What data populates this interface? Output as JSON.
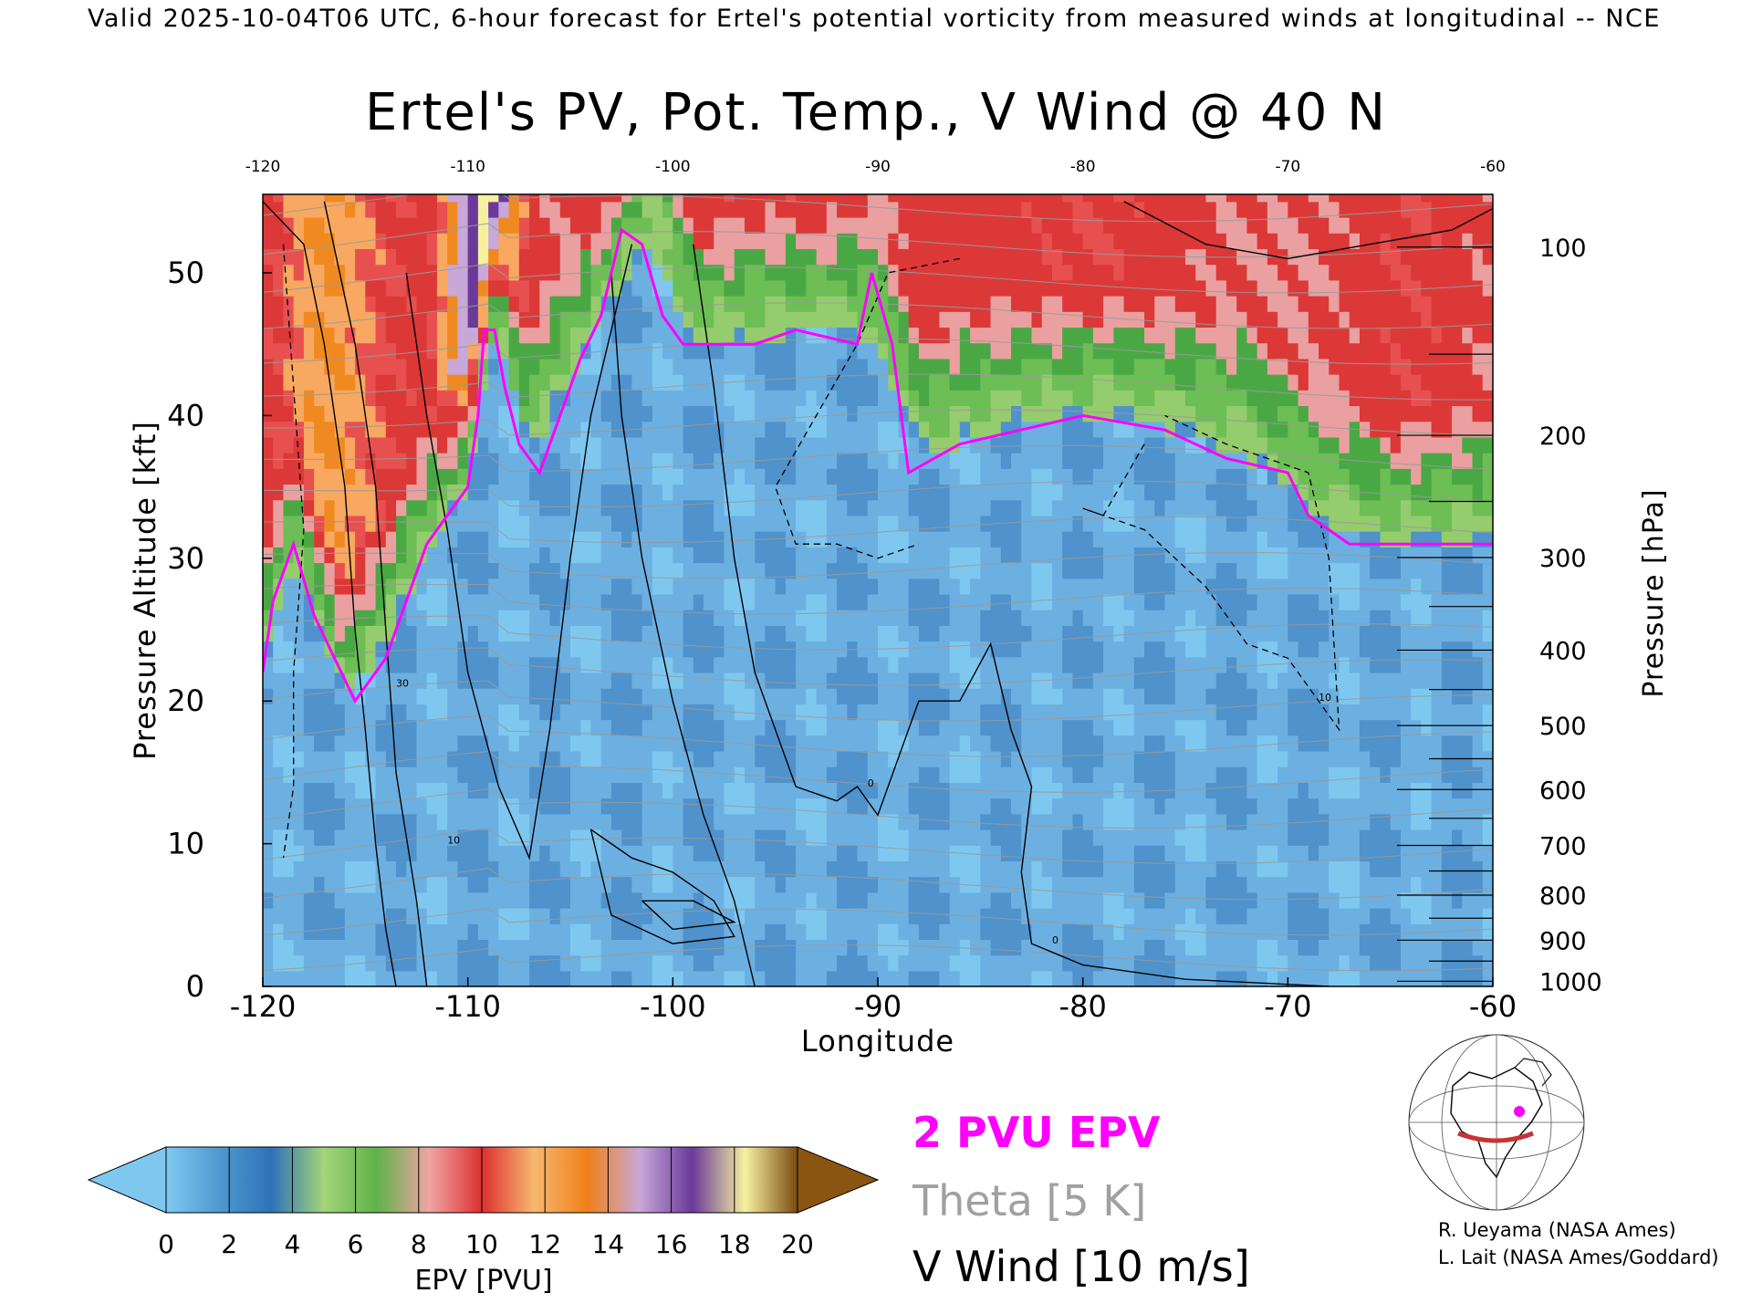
{
  "header": {
    "caption": "Valid 2025-10-04T06 UTC, 6-hour forecast for Ertel's potential vorticity from measured winds at longitudinal -- NCE"
  },
  "chart_data": {
    "type": "heatmap",
    "title": "Ertel's PV, Pot. Temp., V Wind @ 40 N",
    "xlabel": "Longitude",
    "ylabel": "Pressure Altitude [kft]",
    "ylabel_right": "Pressure [hPa]",
    "xlim": [
      -120,
      -60
    ],
    "ylim": [
      0,
      55.5
    ],
    "x_ticks": [
      "-120",
      "-110",
      "-100",
      "-90",
      "-80",
      "-70",
      "-60"
    ],
    "x_tick_values": [
      -120,
      -110,
      -100,
      -90,
      -80,
      -70,
      -60
    ],
    "y_ticks": [
      "0",
      "10",
      "20",
      "30",
      "40",
      "50"
    ],
    "y_tick_values": [
      0,
      10,
      20,
      30,
      40,
      50
    ],
    "pressure_ticks": [
      "100",
      "200",
      "300",
      "400",
      "500",
      "600",
      "700",
      "800",
      "900",
      "1000"
    ],
    "pressure_tick_values": [
      100,
      200,
      300,
      400,
      500,
      600,
      700,
      800,
      900,
      1000
    ],
    "pv_columns": [
      {
        "x": -120,
        "trop": 22,
        "peak": 9
      },
      {
        "x": -118.5,
        "trop": 30,
        "peak": 11
      },
      {
        "x": -117,
        "trop": 24,
        "peak": 13
      },
      {
        "x": -116,
        "trop": 20,
        "peak": 12
      },
      {
        "x": -114,
        "trop": 24,
        "peak": 10
      },
      {
        "x": -112,
        "trop": 30,
        "peak": 9
      },
      {
        "x": -110,
        "trop": 35,
        "peak": 16
      },
      {
        "x": -109,
        "trop": 44,
        "peak": 20
      },
      {
        "x": -108.5,
        "trop": 46,
        "peak": 17
      },
      {
        "x": -107,
        "trop": 37,
        "peak": 9
      },
      {
        "x": -105,
        "trop": 42,
        "peak": 8
      },
      {
        "x": -103,
        "trop": 48,
        "peak": 11
      },
      {
        "x": -101,
        "trop": 52,
        "peak": 6
      },
      {
        "x": -99,
        "trop": 45,
        "peak": 10
      },
      {
        "x": -96,
        "trop": 45,
        "peak": 9
      },
      {
        "x": -93,
        "trop": 46,
        "peak": 10
      },
      {
        "x": -90,
        "trop": 45,
        "peak": 8
      },
      {
        "x": -88,
        "trop": 37,
        "peak": 9
      },
      {
        "x": -84,
        "trop": 39,
        "peak": 9
      },
      {
        "x": -80,
        "trop": 40,
        "peak": 10
      },
      {
        "x": -76,
        "trop": 39,
        "peak": 9
      },
      {
        "x": -72,
        "trop": 37,
        "peak": 8
      },
      {
        "x": -69,
        "trop": 33,
        "peak": 8
      },
      {
        "x": -66,
        "trop": 31,
        "peak": 9
      },
      {
        "x": -64,
        "trop": 31,
        "peak": 10
      },
      {
        "x": -60,
        "trop": 31,
        "peak": 8
      }
    ],
    "pv_2pvu_line": {
      "name": "2 PVU EPV",
      "points": [
        [
          -120,
          22
        ],
        [
          -119.5,
          27
        ],
        [
          -118.5,
          31
        ],
        [
          -117.5,
          26
        ],
        [
          -116.5,
          23
        ],
        [
          -115.5,
          20
        ],
        [
          -114,
          23
        ],
        [
          -112,
          31
        ],
        [
          -110,
          35
        ],
        [
          -109.5,
          40
        ],
        [
          -109.2,
          46
        ],
        [
          -108.7,
          46
        ],
        [
          -108.2,
          42
        ],
        [
          -107.5,
          38
        ],
        [
          -106.5,
          36
        ],
        [
          -105.5,
          40
        ],
        [
          -104.5,
          44
        ],
        [
          -103.5,
          47
        ],
        [
          -102.5,
          53
        ],
        [
          -101.5,
          52
        ],
        [
          -100.5,
          47
        ],
        [
          -99.5,
          45
        ],
        [
          -96,
          45
        ],
        [
          -94,
          46
        ],
        [
          -91,
          45
        ],
        [
          -90.3,
          50
        ],
        [
          -89.3,
          45
        ],
        [
          -88.5,
          36
        ],
        [
          -86,
          38
        ],
        [
          -83,
          39
        ],
        [
          -80,
          40
        ],
        [
          -76,
          39
        ],
        [
          -73,
          37
        ],
        [
          -70,
          36
        ],
        [
          -69,
          33
        ],
        [
          -67,
          31
        ],
        [
          -64,
          31
        ],
        [
          -60,
          31
        ]
      ]
    },
    "theta_interval_label": "Theta [5 K]",
    "wind_interval_label": "V Wind [10 m/s]",
    "wind_contour_labels": [
      "0",
      "10",
      "30"
    ],
    "colorbar": {
      "label": "EPV [PVU]",
      "ticks": [
        "0",
        "2",
        "4",
        "6",
        "8",
        "10",
        "12",
        "14",
        "16",
        "18",
        "20"
      ],
      "colors": [
        "#7ec8f0",
        "#4f9ad0",
        "#2e72b8",
        "#a4d47a",
        "#5fb24a",
        "#f0a4a4",
        "#dc3030",
        "#f8b870",
        "#f08018",
        "#c8a8d8",
        "#6a3a9a",
        "#f6f0a0",
        "#7a4a10"
      ],
      "under_color": "#7ec8f0",
      "over_color": "#8a5510"
    }
  },
  "legend": {
    "pv_line_label": "2 PVU EPV",
    "theta_label": "Theta [5 K]",
    "wind_label": "V Wind [10 m/s]",
    "pv_line_color": "#ff00ff",
    "theta_color": "#aaaaaa"
  },
  "credits": {
    "line1": "R. Ueyama (NASA Ames)",
    "line2": "L. Lait (NASA Ames/Goddard)"
  },
  "inset_map": {
    "icon": "globe-section-map-icon",
    "section_color": "#c83232"
  }
}
